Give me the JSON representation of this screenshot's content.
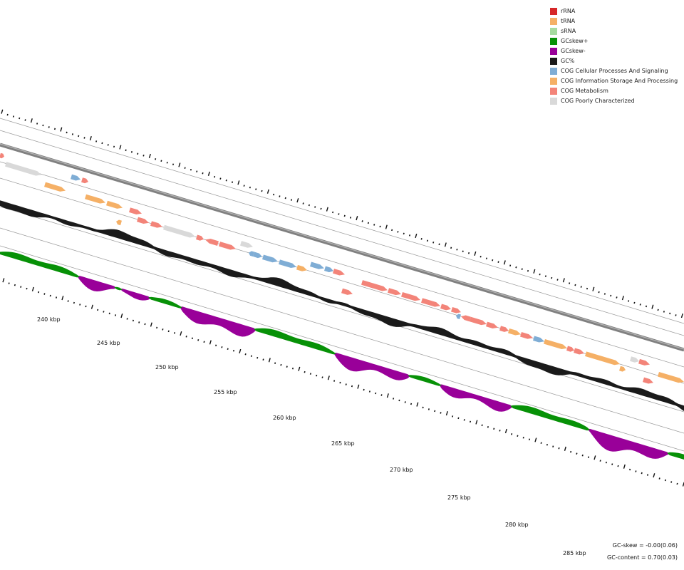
{
  "legend": {
    "items": [
      {
        "label": "rRNA",
        "color": "#d62728"
      },
      {
        "label": "tRNA",
        "color": "#f5b066"
      },
      {
        "label": "sRNA",
        "color": "#a6dba0"
      },
      {
        "label": "GCskew+",
        "color": "#079107"
      },
      {
        "label": "GCskew-",
        "color": "#990099"
      },
      {
        "label": "GC%",
        "color": "#1a1a1a"
      },
      {
        "label": "COG Cellular Processes And Signaling",
        "color": "#7fadd5"
      },
      {
        "label": "COG Information Storage And Processing",
        "color": "#f5b066"
      },
      {
        "label": "COG Metabolism",
        "color": "#f38479"
      },
      {
        "label": "COG Poorly Characterized",
        "color": "#d9d9d9"
      }
    ]
  },
  "stats": {
    "gc_skew": "GC-skew = -0.00(0.06)",
    "gc_content": "GC-content = 0.70(0.03)"
  },
  "axis": {
    "unit": "kbp",
    "labels": [
      "240 kbp",
      "245 kbp",
      "250 kbp",
      "255 kbp",
      "260 kbp",
      "265 kbp",
      "270 kbp",
      "275 kbp",
      "280 kbp",
      "285 kbp"
    ]
  },
  "tracks": {
    "backbone_color": "#808080",
    "gc_percent_color": "#1a1a1a",
    "gc_skew_pos_color": "#079107",
    "gc_skew_neg_color": "#990099"
  }
}
